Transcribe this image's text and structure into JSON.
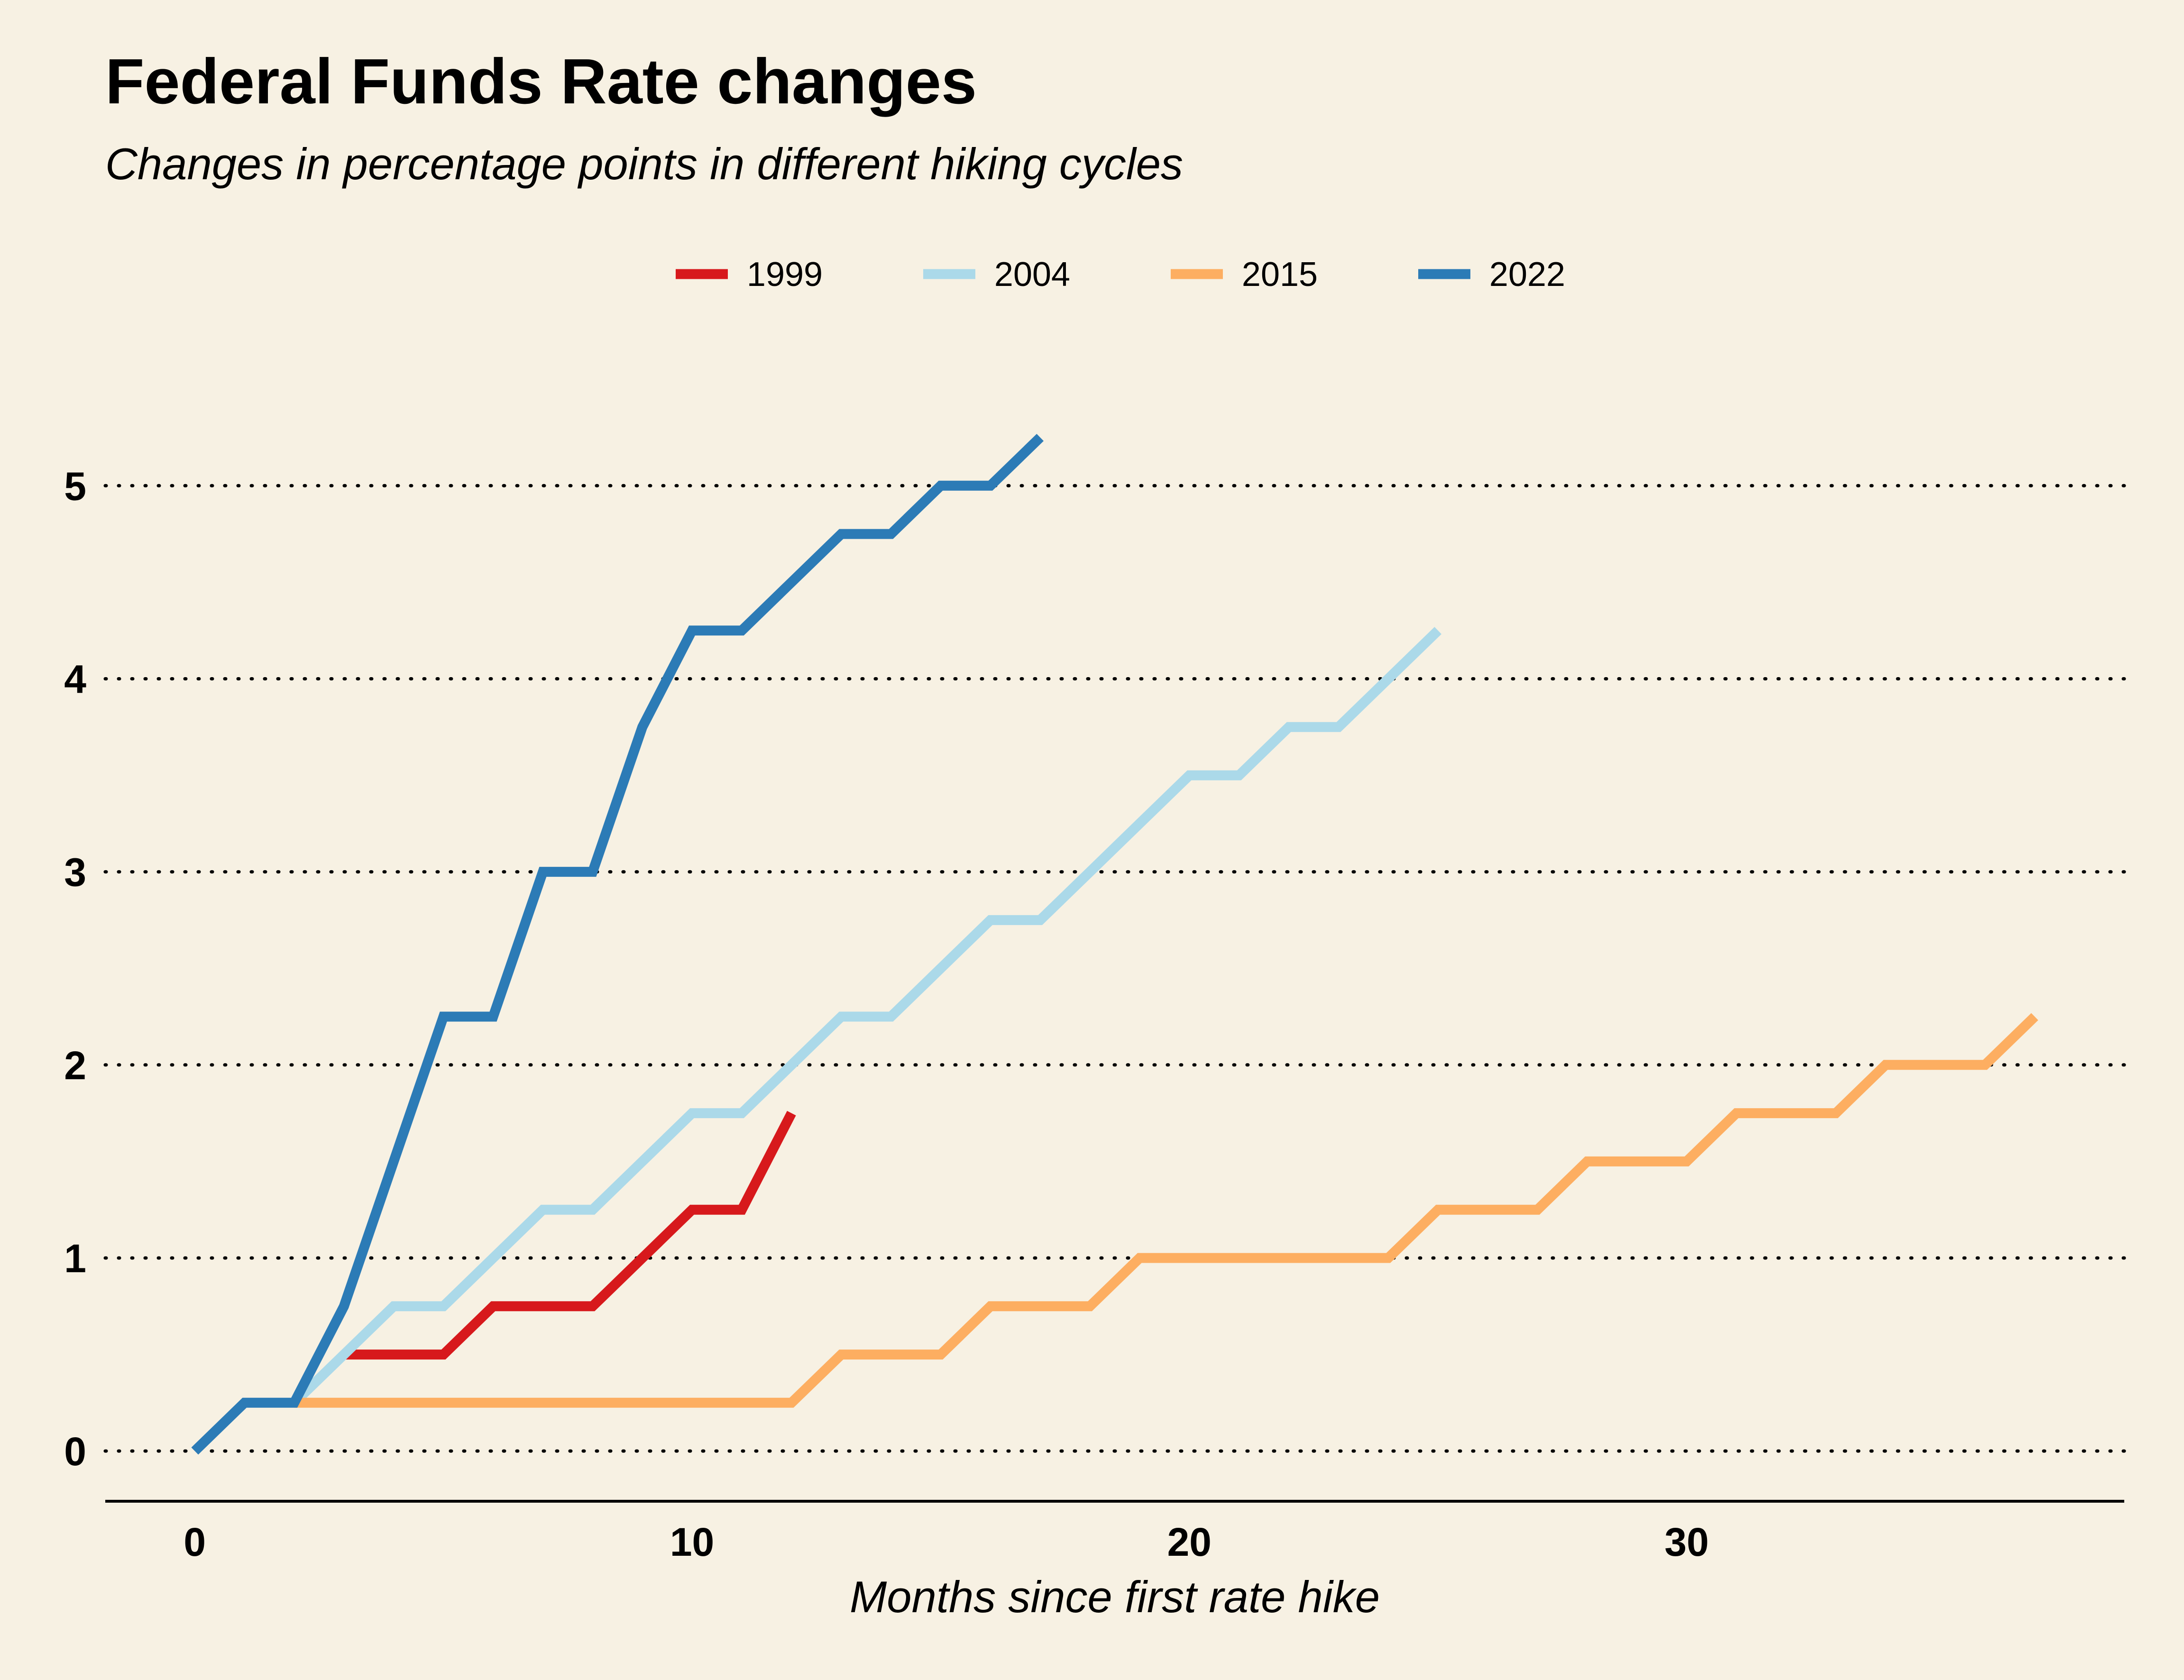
{
  "chart_data": {
    "type": "line",
    "title": "Federal Funds Rate changes",
    "subtitle": "Changes in percentage points in different hiking cycles",
    "xlabel": "Months since first rate hike",
    "ylabel": "",
    "xlim": [
      -1.8,
      38.8
    ],
    "ylim": [
      -0.26,
      5.6
    ],
    "xticks": [
      0,
      10,
      20,
      30
    ],
    "yticks": [
      0,
      1,
      2,
      3,
      4,
      5
    ],
    "grid": "horizontal dotted",
    "legend_position": "top-center",
    "series": [
      {
        "name": "1999",
        "color": "#d7191c",
        "x": [
          3,
          4,
          5,
          6,
          7,
          8,
          9,
          10,
          11,
          12
        ],
        "y": [
          0.5,
          0.5,
          0.5,
          0.75,
          0.75,
          0.75,
          1.0,
          1.25,
          1.25,
          1.75
        ]
      },
      {
        "name": "2004",
        "color": "#abd9e9",
        "x": [
          2,
          3,
          4,
          5,
          6,
          7,
          8,
          9,
          10,
          11,
          12,
          13,
          14,
          15,
          16,
          17,
          18,
          19,
          20,
          21,
          22,
          23,
          24,
          25
        ],
        "y": [
          0.25,
          0.5,
          0.75,
          0.75,
          1.0,
          1.25,
          1.25,
          1.5,
          1.75,
          1.75,
          2.0,
          2.25,
          2.25,
          2.5,
          2.75,
          2.75,
          3.0,
          3.25,
          3.5,
          3.5,
          3.75,
          3.75,
          4.0,
          4.25
        ]
      },
      {
        "name": "2015",
        "color": "#fdae61",
        "x": [
          2,
          3,
          4,
          5,
          6,
          7,
          8,
          9,
          10,
          11,
          12,
          13,
          14,
          15,
          16,
          17,
          18,
          19,
          20,
          21,
          22,
          23,
          24,
          25,
          26,
          27,
          28,
          29,
          30,
          31,
          32,
          33,
          34,
          35,
          36,
          37
        ],
        "y": [
          0.25,
          0.25,
          0.25,
          0.25,
          0.25,
          0.25,
          0.25,
          0.25,
          0.25,
          0.25,
          0.25,
          0.5,
          0.5,
          0.5,
          0.75,
          0.75,
          0.75,
          1.0,
          1.0,
          1.0,
          1.0,
          1.0,
          1.0,
          1.25,
          1.25,
          1.25,
          1.5,
          1.5,
          1.5,
          1.75,
          1.75,
          1.75,
          2.0,
          2.0,
          2.0,
          2.25
        ]
      },
      {
        "name": "2022",
        "color": "#2c7bb6",
        "x": [
          0,
          1,
          2,
          3,
          4,
          5,
          6,
          7,
          8,
          9,
          10,
          11,
          12,
          13,
          14,
          15,
          16,
          17
        ],
        "y": [
          0,
          0.25,
          0.25,
          0.75,
          1.5,
          2.25,
          2.25,
          3.0,
          3.0,
          3.75,
          4.25,
          4.25,
          4.5,
          4.75,
          4.75,
          5.0,
          5.0,
          5.25
        ]
      }
    ]
  }
}
